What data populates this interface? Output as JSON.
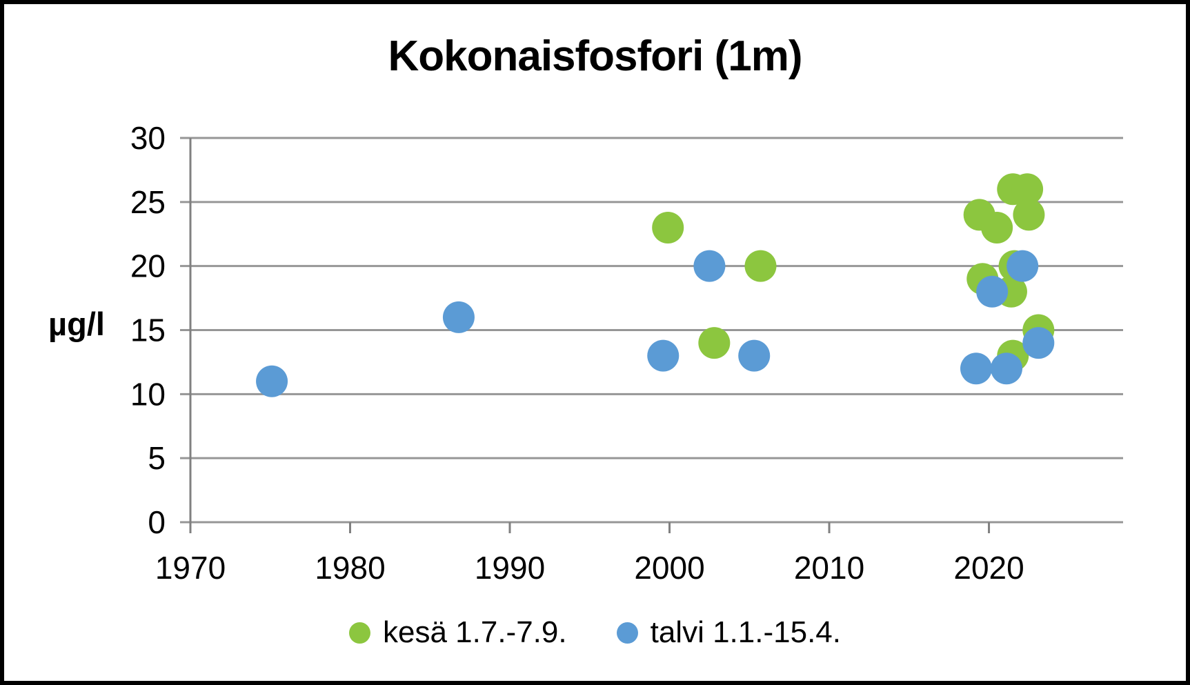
{
  "chart_data": {
    "type": "scatter",
    "title": "Kokonaisfosfori (1m)",
    "xlabel": "",
    "ylabel": "µg/l",
    "xlim": [
      1970,
      2028.4
    ],
    "ylim": [
      0,
      30
    ],
    "xticks": [
      1970,
      1980,
      1990,
      2000,
      2010,
      2020
    ],
    "yticks": [
      0,
      5,
      10,
      15,
      20,
      25,
      30
    ],
    "grid": "horizontal",
    "grid_color": "#969696",
    "axis_color": "#808080",
    "legend_position": "bottom-center",
    "series": [
      {
        "name": "kesä 1.7.-7.9.",
        "color": "#8CC63F",
        "points": [
          [
            1999.9,
            23
          ],
          [
            2002.8,
            14
          ],
          [
            2005.7,
            20
          ],
          [
            2019.4,
            24
          ],
          [
            2019.6,
            19
          ],
          [
            2020.5,
            23
          ],
          [
            2021.4,
            18
          ],
          [
            2021.5,
            26
          ],
          [
            2021.5,
            13
          ],
          [
            2021.6,
            20
          ],
          [
            2022.4,
            26
          ],
          [
            2022.5,
            24
          ],
          [
            2023.1,
            15
          ]
        ]
      },
      {
        "name": "talvi 1.1.-15.4.",
        "color": "#5B9BD5",
        "points": [
          [
            1975.1,
            11
          ],
          [
            1986.8,
            16
          ],
          [
            1999.6,
            13
          ],
          [
            2002.5,
            20
          ],
          [
            2005.3,
            13
          ],
          [
            2019.2,
            12
          ],
          [
            2020.2,
            18
          ],
          [
            2021.1,
            12
          ],
          [
            2022.1,
            20
          ],
          [
            2023.1,
            14
          ]
        ]
      }
    ]
  }
}
